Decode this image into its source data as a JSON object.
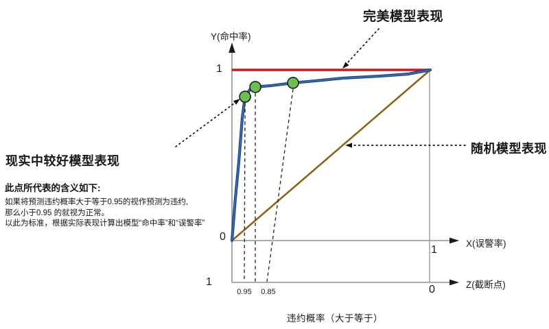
{
  "labels": {
    "perfect_model": "完美模型表现",
    "good_model": "现实中较好模型表现",
    "random_model": "随机模型表现",
    "bottom_caption": "违约概率（大于等于）"
  },
  "note": {
    "title": "此点所代表的含义如下:",
    "lines": [
      "如果将预测违约概率大于等于0.95的视作预测为违约,",
      "那么小于0.95 的就视为正常。",
      "以此为标准，根据实际表现计算出模型“命中率”和“误警率”"
    ]
  },
  "axes": {
    "y_label": "Y(命中率)",
    "x_label": "X(误警率)",
    "z_label": "Z(截断点)",
    "y_tick_1": "1",
    "origin_tick": "0",
    "x_tick_1": "1",
    "z_tick_left": "1",
    "z_tick_right": "0",
    "cutoff_ticks": [
      "0.95",
      "0.85"
    ]
  },
  "colors": {
    "perfect_line": "#c8181a",
    "roc_outer": "#1b4587",
    "roc_inner": "#3f6fbe",
    "random_line": "#8a6414",
    "marker_fill": "#6cc04f",
    "marker_stroke": "#1b1b1b",
    "axis": "#8f8f8f",
    "ink": "#1b1b1b"
  },
  "chart_data": {
    "type": "line",
    "xlabel": "X(误警率)",
    "ylabel": "Y(命中率)",
    "xlim": [
      0,
      1
    ],
    "ylim": [
      0,
      1
    ],
    "legend_position": "annotated-arrows",
    "series": [
      {
        "role": "perfect",
        "name": "完美模型表现",
        "color": "#c8181a",
        "points": [
          [
            0,
            1
          ],
          [
            1,
            1
          ]
        ]
      },
      {
        "role": "roc",
        "name": "现实中较好模型表现",
        "color": "#1b4587",
        "points": [
          [
            0,
            0
          ],
          [
            0.017,
            0.245
          ],
          [
            0.035,
            0.466
          ],
          [
            0.052,
            0.719
          ],
          [
            0.066,
            0.843
          ],
          [
            0.09,
            0.884
          ],
          [
            0.118,
            0.9
          ],
          [
            0.197,
            0.908
          ],
          [
            0.308,
            0.924
          ],
          [
            0.422,
            0.936
          ],
          [
            0.561,
            0.952
          ],
          [
            0.751,
            0.964
          ],
          [
            0.889,
            0.976
          ],
          [
            1,
            1
          ]
        ]
      },
      {
        "role": "random",
        "name": "随机模型表现",
        "color": "#8a6414",
        "points": [
          [
            0,
            0
          ],
          [
            1,
            1
          ]
        ]
      }
    ],
    "marked_points": [
      {
        "x": 0.066,
        "y": 0.843,
        "cutoff": "0.95"
      },
      {
        "x": 0.118,
        "y": 0.9,
        "cutoff": ""
      },
      {
        "x": 0.308,
        "y": 0.924,
        "cutoff": "0.85"
      }
    ],
    "cutoff_axis": {
      "label": "Z(截断点)",
      "left_value": "1",
      "right_value": "0",
      "dashed_drop_z_fraction": [
        0.0623,
        0.1176,
        0.1765
      ]
    }
  }
}
